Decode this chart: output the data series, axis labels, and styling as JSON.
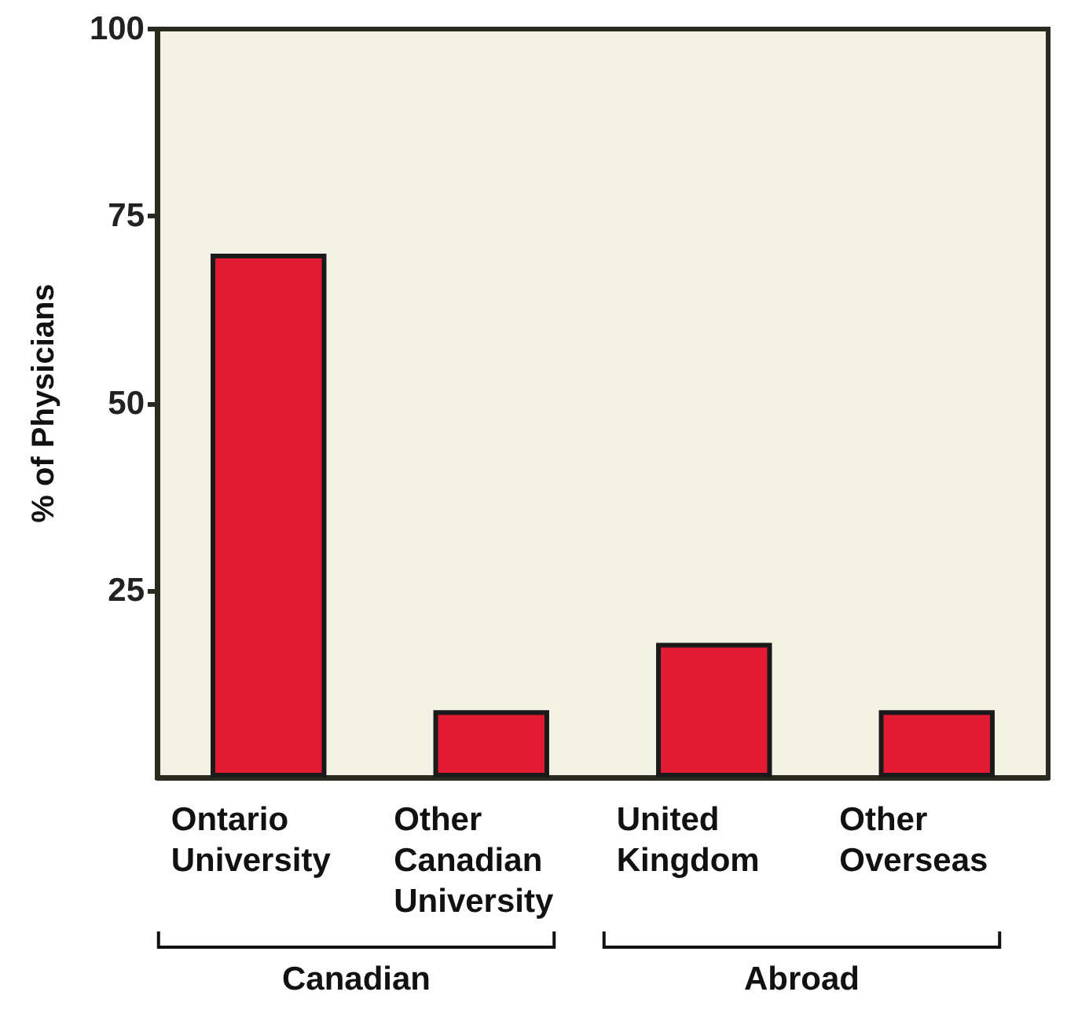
{
  "chart_data": {
    "type": "bar",
    "ylabel": "% of Physicians",
    "categories": [
      "Ontario University",
      "Other Canadian University",
      "United Kingdom",
      "Other Overseas"
    ],
    "values": [
      70,
      9,
      18,
      9
    ],
    "color": "#e21b35",
    "ylim": [
      0,
      100
    ],
    "yticks": [
      25,
      50,
      75,
      100
    ],
    "grid": false,
    "annotations": [
      "Canadian",
      "Abroad"
    ]
  }
}
